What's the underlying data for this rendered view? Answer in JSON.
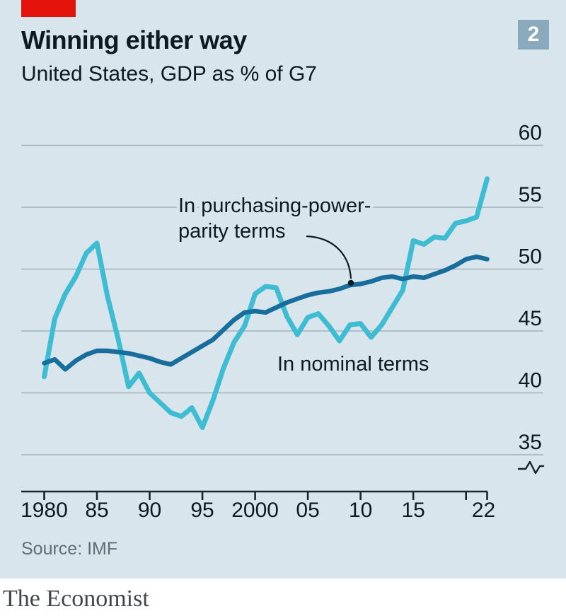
{
  "header": {
    "title": "Winning either way",
    "subtitle": "United States, GDP as % of G7",
    "badge": "2"
  },
  "annotations": {
    "ppp_label_line1": "In purchasing-power-",
    "ppp_label_line2": "parity terms",
    "nominal_label": "In nominal terms"
  },
  "footer": {
    "source": "Source: IMF",
    "brand": "The Economist"
  },
  "colors": {
    "background": "#D9E5EC",
    "red_tab": "#E3120B",
    "badge_bg": "#8BA9BD",
    "nominal_line": "#3EBCD2",
    "ppp_line": "#176D9C",
    "gridline": "#A3B3BB",
    "axis": "#16262C",
    "text": "#0D1A21",
    "source_text": "#5F6E78",
    "brand_text": "#3F4549"
  },
  "chart_data": {
    "type": "line",
    "title": "Winning either way",
    "subtitle": "United States, GDP as % of G7",
    "xlabel": "",
    "ylabel": "GDP as % of G7",
    "ylim": [
      33,
      61
    ],
    "grid": true,
    "legend_position": "inline-annotations",
    "axis_break": true,
    "yticks": [
      35,
      40,
      45,
      50,
      55,
      60
    ],
    "xticks": [
      {
        "year": 1980,
        "label": "1980"
      },
      {
        "year": 1985,
        "label": "85"
      },
      {
        "year": 1990,
        "label": "90"
      },
      {
        "year": 1995,
        "label": "95"
      },
      {
        "year": 2000,
        "label": "2000"
      },
      {
        "year": 2005,
        "label": "05"
      },
      {
        "year": 2010,
        "label": "10"
      },
      {
        "year": 2015,
        "label": "15"
      },
      {
        "year": 2020,
        "label": ""
      },
      {
        "year": 2022,
        "label": "22"
      }
    ],
    "x": [
      1980,
      1981,
      1982,
      1983,
      1984,
      1985,
      1986,
      1987,
      1988,
      1989,
      1990,
      1991,
      1992,
      1993,
      1994,
      1995,
      1996,
      1997,
      1998,
      1999,
      2000,
      2001,
      2002,
      2003,
      2004,
      2005,
      2006,
      2007,
      2008,
      2009,
      2010,
      2011,
      2012,
      2013,
      2014,
      2015,
      2016,
      2017,
      2018,
      2019,
      2020,
      2021,
      2022
    ],
    "series": [
      {
        "name": "In nominal terms",
        "color_key": "nominal_line",
        "values": [
          41.3,
          46.0,
          48.0,
          49.4,
          51.3,
          52.1,
          47.8,
          44.4,
          40.5,
          41.6,
          40.0,
          39.2,
          38.4,
          38.1,
          38.8,
          37.2,
          39.4,
          42.0,
          44.1,
          45.4,
          48.0,
          48.6,
          48.5,
          46.2,
          44.7,
          46.1,
          46.4,
          45.4,
          44.2,
          45.5,
          45.6,
          44.5,
          45.5,
          46.9,
          48.3,
          52.3,
          52.0,
          52.6,
          52.5,
          53.7,
          53.9,
          54.2,
          57.3
        ]
      },
      {
        "name": "In purchasing-power-parity terms",
        "color_key": "ppp_line",
        "values": [
          42.4,
          42.7,
          41.9,
          42.6,
          43.1,
          43.4,
          43.4,
          43.3,
          43.2,
          43.0,
          42.8,
          42.5,
          42.3,
          42.8,
          43.3,
          43.8,
          44.3,
          45.1,
          45.9,
          46.5,
          46.6,
          46.5,
          46.9,
          47.3,
          47.6,
          47.9,
          48.1,
          48.2,
          48.4,
          48.7,
          48.8,
          49.0,
          49.3,
          49.4,
          49.2,
          49.4,
          49.3,
          49.6,
          49.9,
          50.3,
          50.8,
          51.0,
          50.8
        ]
      }
    ]
  }
}
